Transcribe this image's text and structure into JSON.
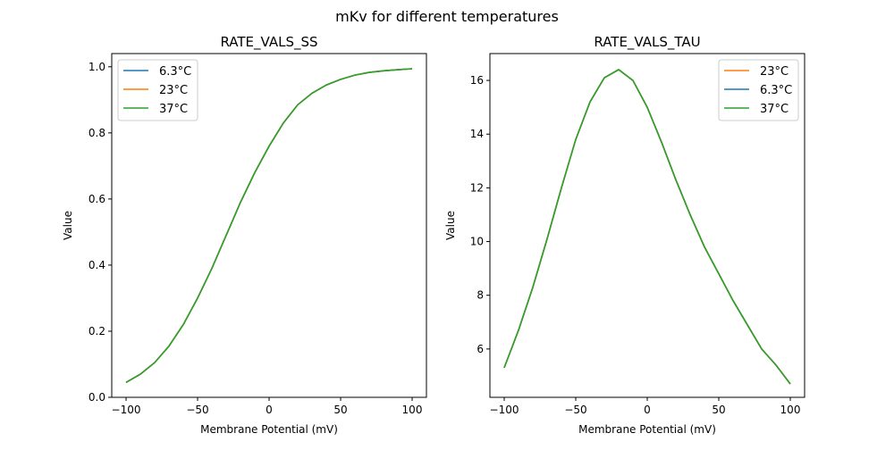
{
  "suptitle": "mKv for different temperatures",
  "colors": {
    "6.3°C": "#1f77b4",
    "23°C": "#ff7f0e",
    "37°C": "#2ca02c"
  },
  "chart_data": [
    {
      "type": "line",
      "title": "RATE_VALS_SS",
      "xlabel": "Membrane Potential (mV)",
      "ylabel": "Value",
      "xlim": [
        -110,
        110
      ],
      "ylim": [
        0,
        1.04
      ],
      "xticks": [
        -100,
        -50,
        0,
        50,
        100
      ],
      "xtick_labels": [
        "−100",
        "−50",
        "0",
        "50",
        "100"
      ],
      "yticks": [
        0,
        0.2,
        0.4,
        0.6,
        0.8,
        1.0
      ],
      "ytick_labels": [
        "0.0",
        "0.2",
        "0.4",
        "0.6",
        "0.8",
        "1.0"
      ],
      "legend_position": "upper-left",
      "grid": false,
      "x": [
        -100,
        -90,
        -80,
        -70,
        -60,
        -50,
        -40,
        -30,
        -20,
        -10,
        0,
        10,
        20,
        30,
        40,
        50,
        60,
        70,
        80,
        90,
        100
      ],
      "series": [
        {
          "name": "6.3°C",
          "values": [
            0.045,
            0.07,
            0.105,
            0.155,
            0.22,
            0.3,
            0.39,
            0.49,
            0.59,
            0.68,
            0.76,
            0.83,
            0.885,
            0.92,
            0.945,
            0.962,
            0.975,
            0.983,
            0.988,
            0.991,
            0.994
          ]
        },
        {
          "name": "23°C",
          "values": [
            0.045,
            0.07,
            0.105,
            0.155,
            0.22,
            0.3,
            0.39,
            0.49,
            0.59,
            0.68,
            0.76,
            0.83,
            0.885,
            0.92,
            0.945,
            0.962,
            0.975,
            0.983,
            0.988,
            0.991,
            0.994
          ]
        },
        {
          "name": "37°C",
          "values": [
            0.045,
            0.07,
            0.105,
            0.155,
            0.22,
            0.3,
            0.39,
            0.49,
            0.59,
            0.68,
            0.76,
            0.83,
            0.885,
            0.92,
            0.945,
            0.962,
            0.975,
            0.983,
            0.988,
            0.991,
            0.994
          ]
        }
      ]
    },
    {
      "type": "line",
      "title": "RATE_VALS_TAU",
      "xlabel": "Membrane Potential (mV)",
      "ylabel": "Value",
      "xlim": [
        -110,
        110
      ],
      "ylim": [
        4.2,
        17.0
      ],
      "xticks": [
        -100,
        -50,
        0,
        50,
        100
      ],
      "xtick_labels": [
        "−100",
        "−50",
        "0",
        "50",
        "100"
      ],
      "yticks": [
        6,
        8,
        10,
        12,
        14,
        16
      ],
      "ytick_labels": [
        "6",
        "8",
        "10",
        "12",
        "14",
        "16"
      ],
      "legend_position": "upper-right",
      "grid": false,
      "x": [
        -100,
        -90,
        -80,
        -70,
        -60,
        -50,
        -40,
        -30,
        -20,
        -10,
        0,
        10,
        20,
        30,
        40,
        50,
        60,
        70,
        80,
        90,
        100
      ],
      "series": [
        {
          "name": "23°C",
          "values": [
            5.3,
            6.7,
            8.3,
            10.1,
            12.0,
            13.8,
            15.2,
            16.1,
            16.4,
            16.0,
            15.0,
            13.7,
            12.3,
            11.0,
            9.8,
            8.8,
            7.8,
            6.9,
            6.0,
            5.4,
            4.7
          ]
        },
        {
          "name": "6.3°C",
          "values": [
            5.3,
            6.7,
            8.3,
            10.1,
            12.0,
            13.8,
            15.2,
            16.1,
            16.4,
            16.0,
            15.0,
            13.7,
            12.3,
            11.0,
            9.8,
            8.8,
            7.8,
            6.9,
            6.0,
            5.4,
            4.7
          ]
        },
        {
          "name": "37°C",
          "values": [
            5.3,
            6.7,
            8.3,
            10.1,
            12.0,
            13.8,
            15.2,
            16.1,
            16.4,
            16.0,
            15.0,
            13.7,
            12.3,
            11.0,
            9.8,
            8.8,
            7.8,
            6.9,
            6.0,
            5.4,
            4.7
          ]
        }
      ]
    }
  ]
}
